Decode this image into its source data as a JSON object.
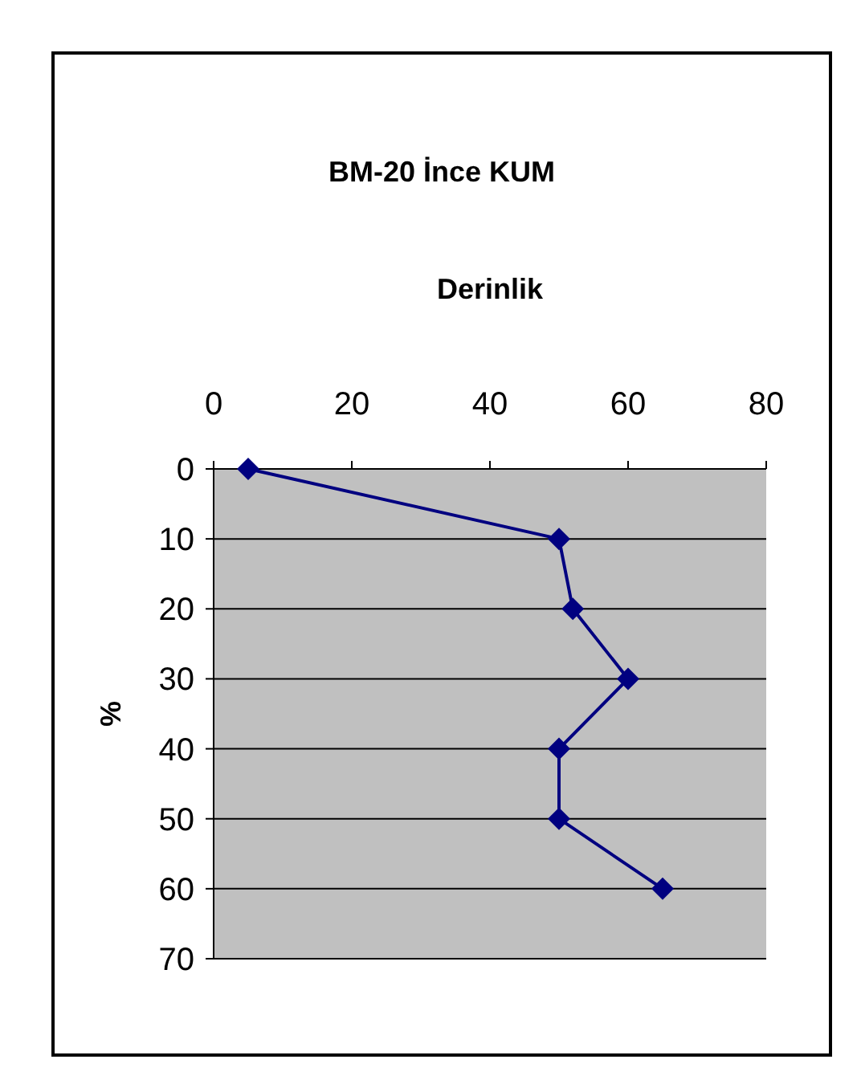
{
  "chart_data": {
    "type": "line",
    "title": "BM-20 İnce KUM",
    "xlabel": "Derinlik",
    "ylabel": "%",
    "series": [
      {
        "color": "#000080",
        "x": [
          5,
          50,
          52,
          60,
          50,
          50,
          65
        ],
        "values": [
          0,
          10,
          20,
          30,
          40,
          50,
          60
        ]
      }
    ],
    "xlim": [
      0,
      80
    ],
    "xticks": [
      0,
      20,
      40,
      60,
      80
    ],
    "ylim": [
      70,
      0
    ],
    "yticks": [
      0,
      10,
      20,
      30,
      40,
      50,
      60,
      70
    ],
    "grid": "y",
    "marker": "diamond",
    "line_style": "solid"
  }
}
